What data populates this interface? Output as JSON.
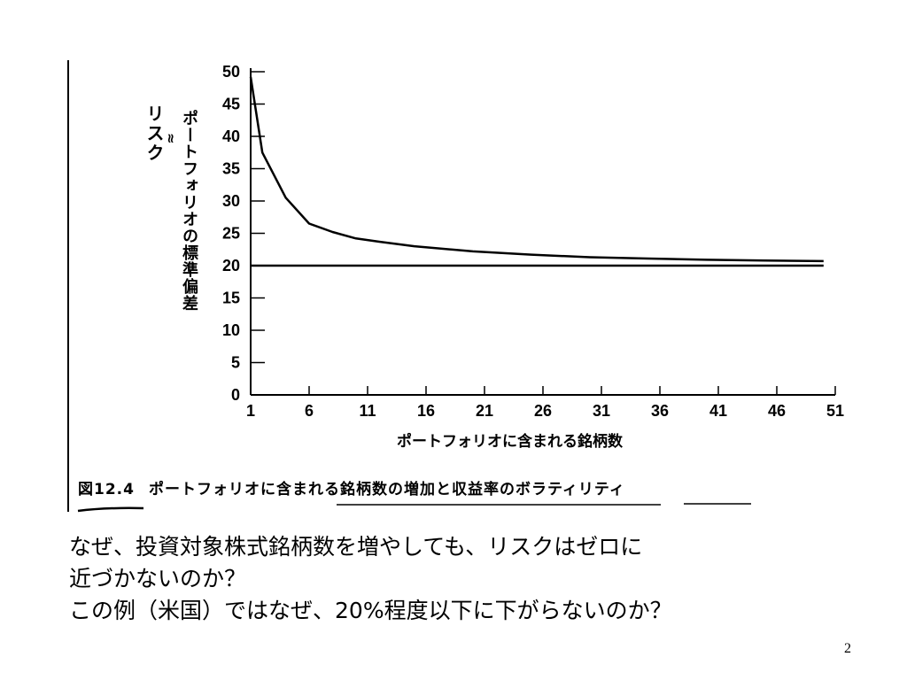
{
  "figure": {
    "y_axis_label_outer": "リスク",
    "y_axis_label_approx": "≈",
    "y_axis_label_inner": "ポートフォリオの標準偏差",
    "x_axis_label": "ポートフォリオに含まれる銘柄数",
    "caption_number": "図12.4",
    "caption_text": "ポートフォリオに含まれる銘柄数の増加と収益率のボラティリティ"
  },
  "chart_data": {
    "type": "line",
    "title": "",
    "xlabel": "ポートフォリオに含まれる銘柄数",
    "ylabel": "ポートフォリオの標準偏差",
    "xlim": [
      1,
      51
    ],
    "ylim": [
      0,
      50
    ],
    "x_ticks": [
      1,
      6,
      11,
      16,
      21,
      26,
      31,
      36,
      41,
      46,
      51
    ],
    "y_ticks": [
      0,
      5,
      10,
      15,
      20,
      25,
      30,
      35,
      40,
      45,
      50
    ],
    "grid": false,
    "series": [
      {
        "x": [
          1,
          2,
          4,
          6,
          8,
          10,
          12,
          15,
          20,
          25,
          30,
          35,
          40,
          45,
          50
        ],
        "values": [
          49.2,
          37.5,
          30.5,
          26.5,
          25.2,
          24.2,
          23.7,
          23.0,
          22.2,
          21.7,
          21.3,
          21.1,
          20.9,
          20.8,
          20.7
        ]
      },
      {
        "x": [
          1,
          50
        ],
        "values": [
          20.0,
          20.0
        ]
      }
    ]
  },
  "body_text": {
    "lines": [
      "なぜ、投資対象株式銘柄数を増やしても、リスクはゼロに",
      "近づかないのか？",
      "この例（米国）ではなぜ、20%程度以下に下がらないのか？"
    ]
  },
  "page_number": "2"
}
